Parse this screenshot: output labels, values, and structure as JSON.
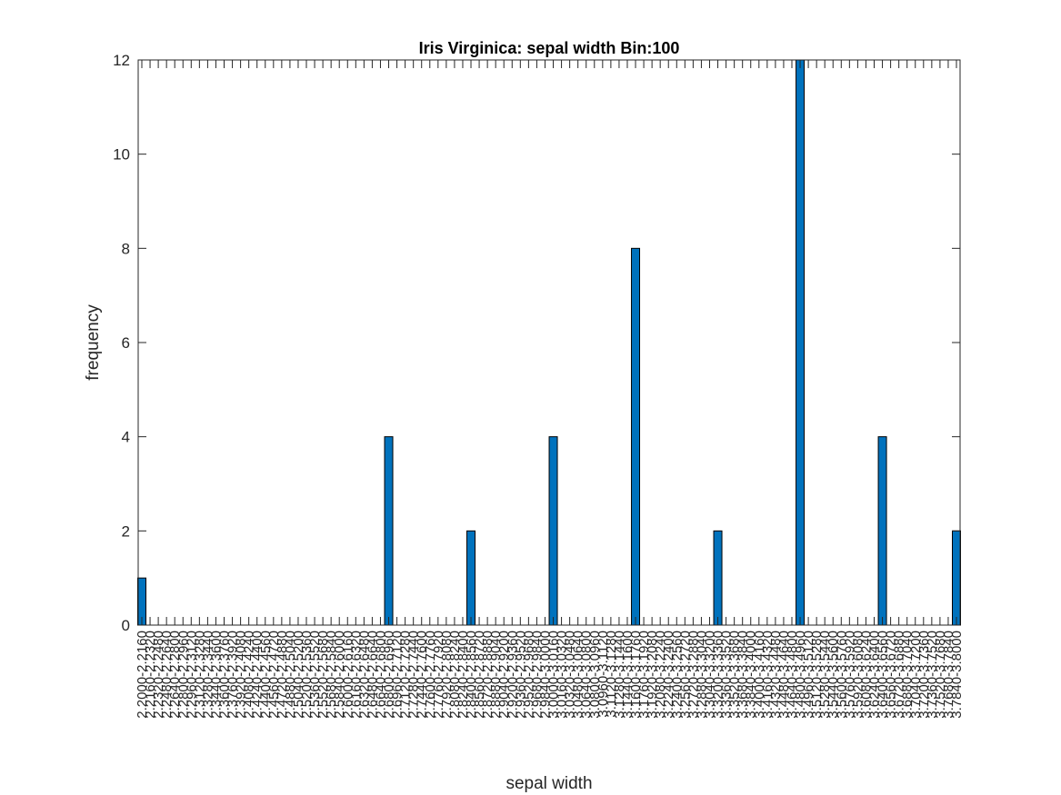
{
  "chart_data": {
    "type": "bar",
    "title": "Iris Virginica: sepal width Bin:100",
    "xlabel": "sepal width",
    "ylabel": "frequency",
    "ylim": [
      0,
      12
    ],
    "yticks": [
      0,
      2,
      4,
      6,
      8,
      10,
      12
    ],
    "bar_color": "#0072BD",
    "axis_color": "#262626",
    "categories": [
      "2.2000-2.2160",
      "2.2160-2.2320",
      "2.2320-2.2480",
      "2.2480-2.2640",
      "2.2640-2.2800",
      "2.2800-2.2960",
      "2.2960-2.3120",
      "2.3120-2.3280",
      "2.3280-2.3440",
      "2.3440-2.3600",
      "2.3600-2.3760",
      "2.3760-2.3920",
      "2.3920-2.4080",
      "2.4080-2.4240",
      "2.4240-2.4400",
      "2.4400-2.4560",
      "2.4560-2.4720",
      "2.4720-2.4880",
      "2.4880-2.5040",
      "2.5040-2.5200",
      "2.5200-2.5360",
      "2.5360-2.5520",
      "2.5520-2.5680",
      "2.5680-2.5840",
      "2.5840-2.6000",
      "2.6000-2.6160",
      "2.6160-2.6320",
      "2.6320-2.6480",
      "2.6480-2.6640",
      "2.6640-2.6800",
      "2.6800-2.6960",
      "2.6960-2.7120",
      "2.7120-2.7280",
      "2.7280-2.7440",
      "2.7440-2.7600",
      "2.7600-2.7760",
      "2.7760-2.7920",
      "2.7920-2.8080",
      "2.8080-2.8240",
      "2.8240-2.8400",
      "2.8400-2.8560",
      "2.8560-2.8720",
      "2.8720-2.8880",
      "2.8880-2.9040",
      "2.9040-2.9200",
      "2.9200-2.9360",
      "2.9360-2.9520",
      "2.9520-2.9680",
      "2.9680-2.9840",
      "2.9840-3.0000",
      "3.0000-3.0160",
      "3.0160-3.0320",
      "3.0320-3.0480",
      "3.0480-3.0640",
      "3.0640-3.0800",
      "3.0800-3.0960",
      "3.0960-3.1120",
      "3.1120-3.1280",
      "3.1280-3.1440",
      "3.1440-3.1600",
      "3.1600-3.1760",
      "3.1760-3.1920",
      "3.1920-3.2080",
      "3.2080-3.2240",
      "3.2240-3.2400",
      "3.2400-3.2560",
      "3.2560-3.2720",
      "3.2720-3.2880",
      "3.2880-3.3040",
      "3.3040-3.3200",
      "3.3200-3.3360",
      "3.3360-3.3520",
      "3.3520-3.3680",
      "3.3680-3.3840",
      "3.3840-3.4000",
      "3.4000-3.4160",
      "3.4160-3.4320",
      "3.4320-3.4480",
      "3.4480-3.4640",
      "3.4640-3.4800",
      "3.4800-3.4960",
      "3.4960-3.5120",
      "3.5120-3.5280",
      "3.5280-3.5440",
      "3.5440-3.5600",
      "3.5600-3.5760",
      "3.5760-3.5920",
      "3.5920-3.6080",
      "3.6080-3.6240",
      "3.6240-3.6400",
      "3.6400-3.6560",
      "3.6560-3.6720",
      "3.6720-3.6880",
      "3.6880-3.7040",
      "3.7040-3.7200",
      "3.7200-3.7360",
      "3.7360-3.7520",
      "3.7520-3.7680",
      "3.7680-3.7840",
      "3.7840-3.8000"
    ],
    "values": [
      1,
      0,
      0,
      0,
      0,
      0,
      0,
      0,
      0,
      0,
      0,
      0,
      0,
      0,
      0,
      0,
      0,
      0,
      0,
      0,
      0,
      0,
      0,
      0,
      0,
      0,
      0,
      0,
      0,
      0,
      4,
      0,
      0,
      0,
      0,
      0,
      0,
      0,
      0,
      0,
      2,
      0,
      0,
      0,
      0,
      0,
      0,
      0,
      0,
      0,
      4,
      0,
      0,
      0,
      0,
      0,
      0,
      0,
      0,
      0,
      8,
      0,
      0,
      0,
      0,
      0,
      0,
      0,
      0,
      0,
      2,
      0,
      0,
      0,
      0,
      0,
      0,
      0,
      0,
      0,
      12,
      0,
      0,
      0,
      0,
      0,
      0,
      0,
      0,
      0,
      4,
      0,
      0,
      0,
      0,
      0,
      0,
      0,
      0,
      2
    ]
  }
}
